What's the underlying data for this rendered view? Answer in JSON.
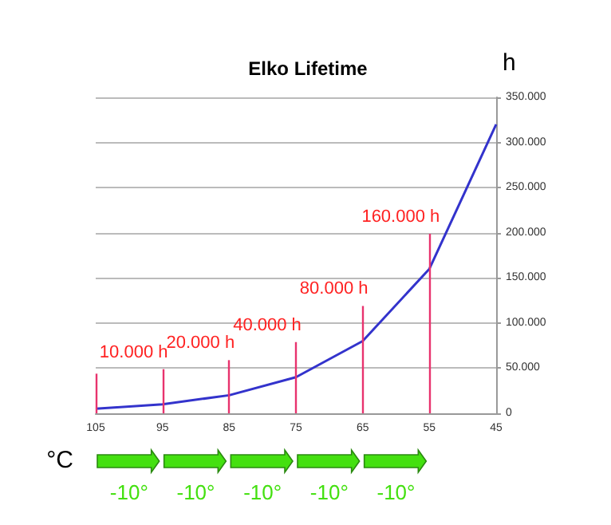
{
  "chart_data": {
    "type": "line",
    "title": "Elko Lifetime",
    "xlabel": "°C",
    "ylabel": "h",
    "categories": [
      "105",
      "95",
      "85",
      "75",
      "65",
      "55",
      "45"
    ],
    "series": [
      {
        "color": "#3333cc",
        "values": [
          5000,
          10000,
          20000,
          40000,
          80000,
          160000,
          320000
        ]
      }
    ],
    "ylim": [
      0,
      350000
    ],
    "yticks": [
      {
        "value": 0,
        "label": "0"
      },
      {
        "value": 50000,
        "label": "50.000"
      },
      {
        "value": 100000,
        "label": "100.000"
      },
      {
        "value": 150000,
        "label": "150.000"
      },
      {
        "value": 200000,
        "label": "200.000"
      },
      {
        "value": 250000,
        "label": "250.000"
      },
      {
        "value": 300000,
        "label": "300.000"
      },
      {
        "value": 350000,
        "label": "350.000"
      }
    ],
    "ref_lines": [
      {
        "axis": "x",
        "value": "105",
        "color": "#e8336e"
      },
      {
        "axis": "x",
        "value": "95",
        "label": "10.000 h",
        "color": "#e8336e"
      },
      {
        "axis": "x",
        "value": "85",
        "label": "20.000 h",
        "color": "#e8336e"
      },
      {
        "axis": "x",
        "value": "75",
        "label": "40.000 h",
        "color": "#e8336e"
      },
      {
        "axis": "x",
        "value": "65",
        "label": "80.000 h",
        "color": "#e8336e"
      },
      {
        "axis": "x",
        "value": "55",
        "label": "160.000 h",
        "color": "#e8336e"
      }
    ],
    "annotations": [
      "-10°",
      "-10°",
      "-10°",
      "-10°",
      "-10°"
    ],
    "grid": "y",
    "legend": false,
    "marker": "none",
    "line_style": "solid"
  }
}
